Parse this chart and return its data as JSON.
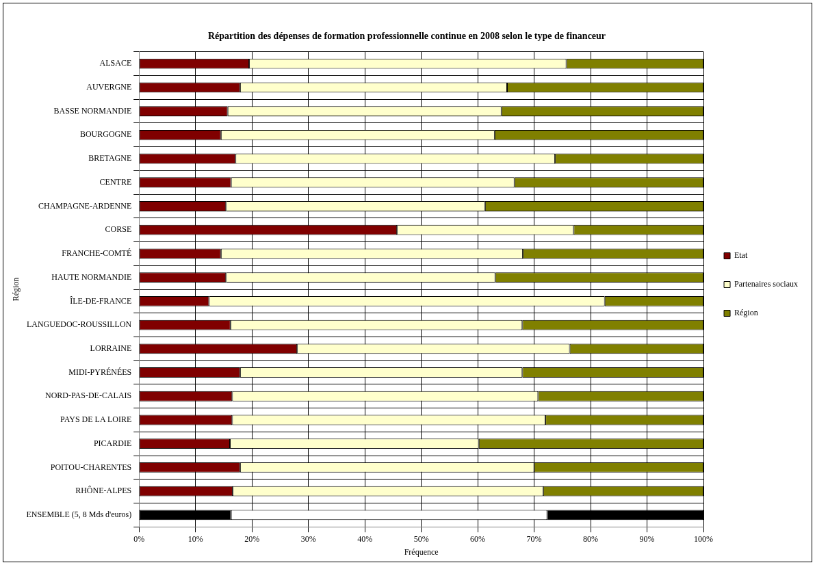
{
  "chart_data": {
    "type": "bar",
    "orientation": "horizontal",
    "stacked": true,
    "title": "Répartition des dépenses de formation professionnelle continue en 2008 selon le type de financeur",
    "xlabel": "Fréquence",
    "ylabel": "Région",
    "categories": [
      "ALSACE",
      "AUVERGNE",
      "BASSE NORMANDIE",
      "BOURGOGNE",
      "BRETAGNE",
      "CENTRE",
      "CHAMPAGNE-ARDENNE",
      "CORSE",
      "FRANCHE-COMTÉ",
      "HAUTE NORMANDIE",
      "ÎLE-DE-FRANCE",
      "LANGUEDOC-ROUSSILLON",
      "LORRAINE",
      "MIDI-PYRÉNÉES",
      "NORD-PAS-DE-CALAIS",
      "PAYS DE LA LOIRE",
      "PICARDIE",
      "POITOU-CHARENTES",
      "RHÔNE-ALPES",
      "ENSEMBLE (5, 8 Mds d'euros)"
    ],
    "series": [
      {
        "name": "Etat",
        "color": "#800000",
        "colors": [
          "#800000",
          "#800000",
          "#800000",
          "#800000",
          "#800000",
          "#800000",
          "#800000",
          "#800000",
          "#800000",
          "#800000",
          "#800000",
          "#800000",
          "#800000",
          "#800000",
          "#800000",
          "#800000",
          "#800000",
          "#800000",
          "#800000",
          "#000000"
        ],
        "values": [
          19.5,
          17.9,
          15.7,
          14.5,
          17.1,
          16.3,
          15.4,
          45.7,
          14.5,
          15.4,
          12.4,
          16.2,
          28.0,
          17.9,
          16.5,
          16.5,
          16.1,
          17.9,
          16.6,
          16.3
        ]
      },
      {
        "name": "Partenaires sociaux",
        "color": "#ffffcc",
        "colors": [
          "#ffffcc",
          "#ffffcc",
          "#ffffcc",
          "#ffffcc",
          "#ffffcc",
          "#ffffcc",
          "#ffffcc",
          "#ffffcc",
          "#ffffcc",
          "#ffffcc",
          "#ffffcc",
          "#ffffcc",
          "#ffffcc",
          "#ffffcc",
          "#ffffcc",
          "#ffffcc",
          "#ffffcc",
          "#ffffcc",
          "#ffffcc",
          "#ffffff"
        ],
        "values": [
          56.2,
          47.3,
          48.5,
          48.5,
          56.6,
          50.2,
          45.9,
          31.3,
          53.5,
          47.7,
          70.1,
          51.7,
          48.3,
          50.0,
          54.2,
          55.5,
          44.1,
          52.1,
          55.0,
          56.0
        ]
      },
      {
        "name": "Région",
        "color": "#808000",
        "colors": [
          "#808000",
          "#808000",
          "#808000",
          "#808000",
          "#808000",
          "#808000",
          "#808000",
          "#808000",
          "#808000",
          "#808000",
          "#808000",
          "#808000",
          "#808000",
          "#808000",
          "#808000",
          "#808000",
          "#808000",
          "#808000",
          "#808000",
          "#000000"
        ],
        "values": [
          24.3,
          34.8,
          35.8,
          37.0,
          26.3,
          33.5,
          38.7,
          23.0,
          32.0,
          36.9,
          17.5,
          32.1,
          23.7,
          32.1,
          29.3,
          28.0,
          39.8,
          30.0,
          28.4,
          27.7
        ]
      }
    ],
    "xlim": [
      0,
      100
    ],
    "xticks": [
      {
        "value": 0,
        "label": "0%"
      },
      {
        "value": 10,
        "label": "10%"
      },
      {
        "value": 20,
        "label": "20%"
      },
      {
        "value": 30,
        "label": "30%"
      },
      {
        "value": 40,
        "label": "40%"
      },
      {
        "value": 50,
        "label": "50%"
      },
      {
        "value": 60,
        "label": "60%"
      },
      {
        "value": 70,
        "label": "70%"
      },
      {
        "value": 80,
        "label": "80%"
      },
      {
        "value": 90,
        "label": "90%"
      },
      {
        "value": 100,
        "label": "100%"
      }
    ],
    "grid": true,
    "legend": "right"
  }
}
